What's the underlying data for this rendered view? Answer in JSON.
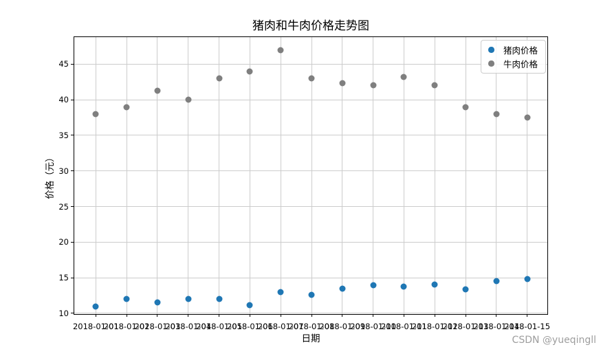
{
  "figure": {
    "watermark": "CSDN @yueqingll"
  },
  "chart_data": {
    "type": "scatter",
    "title": "猪肉和牛肉价格走势图",
    "xlabel": "日期",
    "ylabel": "价格（元）",
    "categories": [
      "2018-01-01",
      "2018-01-02",
      "2018-01-03",
      "2018-01-04",
      "2018-01-05",
      "2018-01-06",
      "2018-01-07",
      "2018-01-08",
      "2018-01-09",
      "2018-01-10",
      "2018-01-11",
      "2018-01-12",
      "2018-01-13",
      "2018-01-14",
      "2018-01-15"
    ],
    "series": [
      {
        "name": "猪肉价格",
        "color": "#1f77b4",
        "values": [
          11.0,
          12.0,
          11.5,
          12.0,
          12.0,
          11.1,
          13.0,
          12.6,
          13.5,
          13.9,
          13.8,
          14.0,
          13.4,
          14.5,
          14.8
        ]
      },
      {
        "name": "牛肉价格",
        "color": "#7f7f7f",
        "values": [
          38.0,
          39.0,
          41.3,
          40.0,
          43.0,
          44.0,
          47.0,
          43.0,
          42.3,
          42.0,
          43.2,
          42.0,
          39.0,
          38.0,
          37.5
        ]
      }
    ],
    "yticks": [
      10,
      15,
      20,
      25,
      30,
      35,
      40,
      45
    ],
    "ylim": [
      9.7,
      48.8
    ],
    "x_margin_units": 0.7,
    "grid": true,
    "grid_color": "#cccccc",
    "legend_position": "upper right"
  }
}
